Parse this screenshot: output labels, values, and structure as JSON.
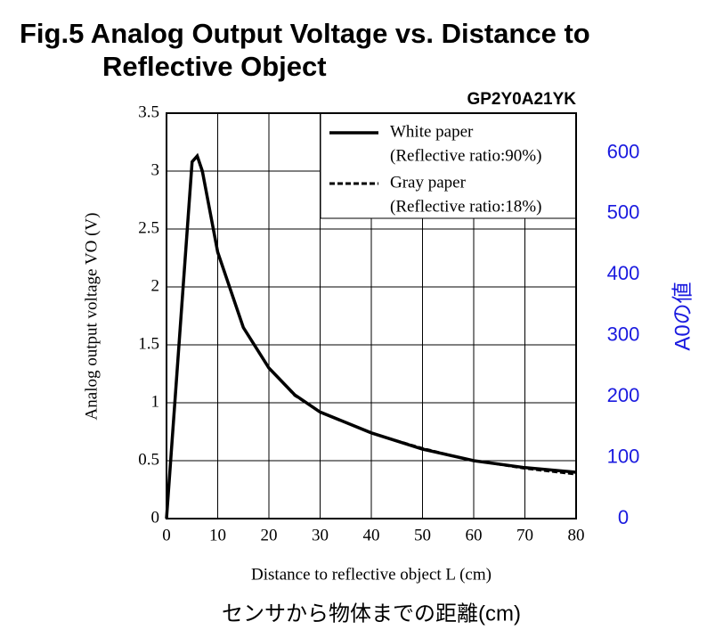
{
  "chart_data": {
    "type": "line",
    "title": [
      "Fig.5 Analog Output Voltage vs. Distance to",
      "Reflective Object"
    ],
    "subtitle": "GP2Y0A21YK",
    "xlabel": "Distance to reflective object L (cm)",
    "ylabel": "Analog output voltage VO (V)",
    "y2label": "A0の値",
    "caption": "センサから物体までの距離(cm)",
    "x": [
      0,
      5,
      6,
      7,
      10,
      15,
      20,
      25,
      30,
      40,
      50,
      60,
      70,
      80
    ],
    "series": [
      {
        "name": "White paper",
        "note": "(Reflective ratio:90%)",
        "color": "#000000",
        "dashed": false,
        "values": [
          0,
          3.08,
          3.13,
          3.0,
          2.3,
          1.65,
          1.3,
          1.07,
          0.92,
          0.74,
          0.6,
          0.5,
          0.44,
          0.4
        ]
      },
      {
        "name": "Gray paper",
        "note": "(Reflective ratio:18%)",
        "color": "#000000",
        "dashed": true,
        "values": [
          0,
          3.08,
          3.12,
          2.98,
          2.3,
          1.65,
          1.3,
          1.06,
          0.92,
          0.74,
          0.61,
          0.5,
          0.43,
          0.38
        ]
      }
    ],
    "xlim": [
      0,
      80
    ],
    "xticks": [
      0,
      10,
      20,
      30,
      40,
      50,
      60,
      70,
      80
    ],
    "ylim": [
      0,
      3.5
    ],
    "yticks": [
      0,
      0.5,
      1,
      1.5,
      2,
      2.5,
      3,
      3.5
    ],
    "y2lim": [
      0,
      665
    ],
    "y2ticks": [
      0,
      100,
      200,
      300,
      400,
      500,
      600
    ],
    "y2color": "#1a1adf",
    "grid": true,
    "legend": "upper right"
  }
}
